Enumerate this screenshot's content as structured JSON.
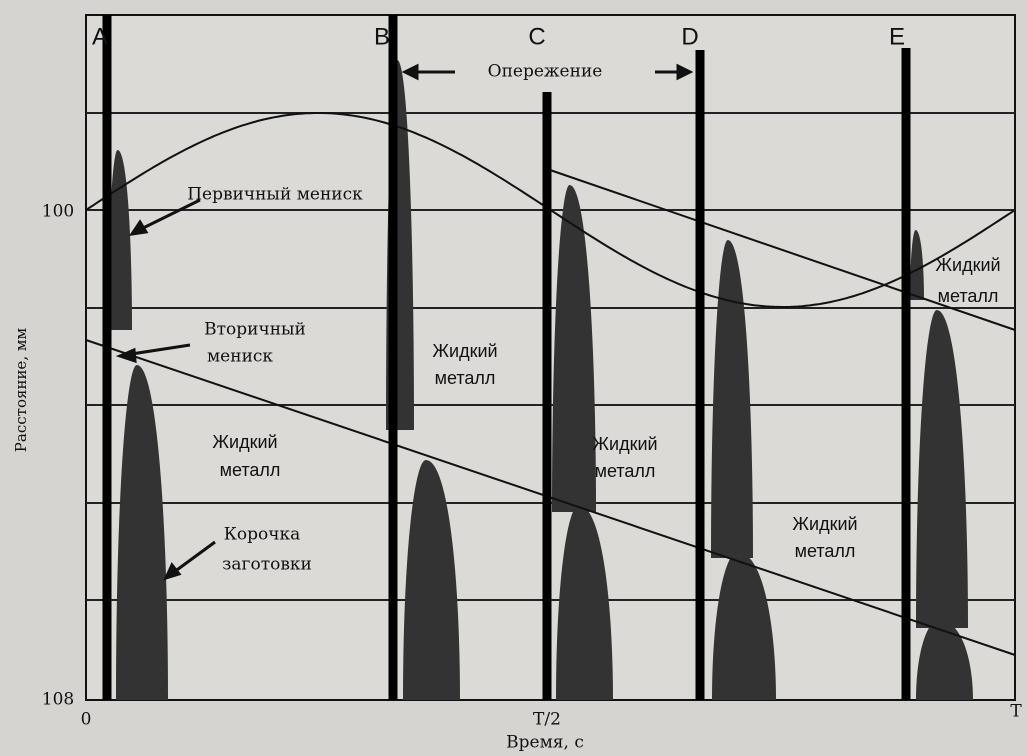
{
  "axes": {
    "y_label": "Расстояние, мм",
    "x_label": "Время, с",
    "y_ticks": [
      "100",
      "108"
    ],
    "x_ticks": [
      "0",
      "T/2",
      "T"
    ]
  },
  "markers": [
    "A",
    "B",
    "C",
    "D",
    "E"
  ],
  "annotations": {
    "lead": "Опережение",
    "primary_meniscus": "Первичный мениск",
    "secondary_meniscus": [
      "Вторичный",
      "мениск"
    ],
    "liquid_metal_a": [
      "Жидкий",
      "металл"
    ],
    "shell": [
      "Корочка",
      "заготовки"
    ],
    "liquid_metal_b": [
      "Жидкий",
      "металл"
    ],
    "liquid_metal_c": [
      "Жидкий",
      "металл"
    ],
    "liquid_metal_d": [
      "Жидкий",
      "металл"
    ],
    "liquid_metal_e": [
      "Жидкий",
      "металл"
    ]
  }
}
